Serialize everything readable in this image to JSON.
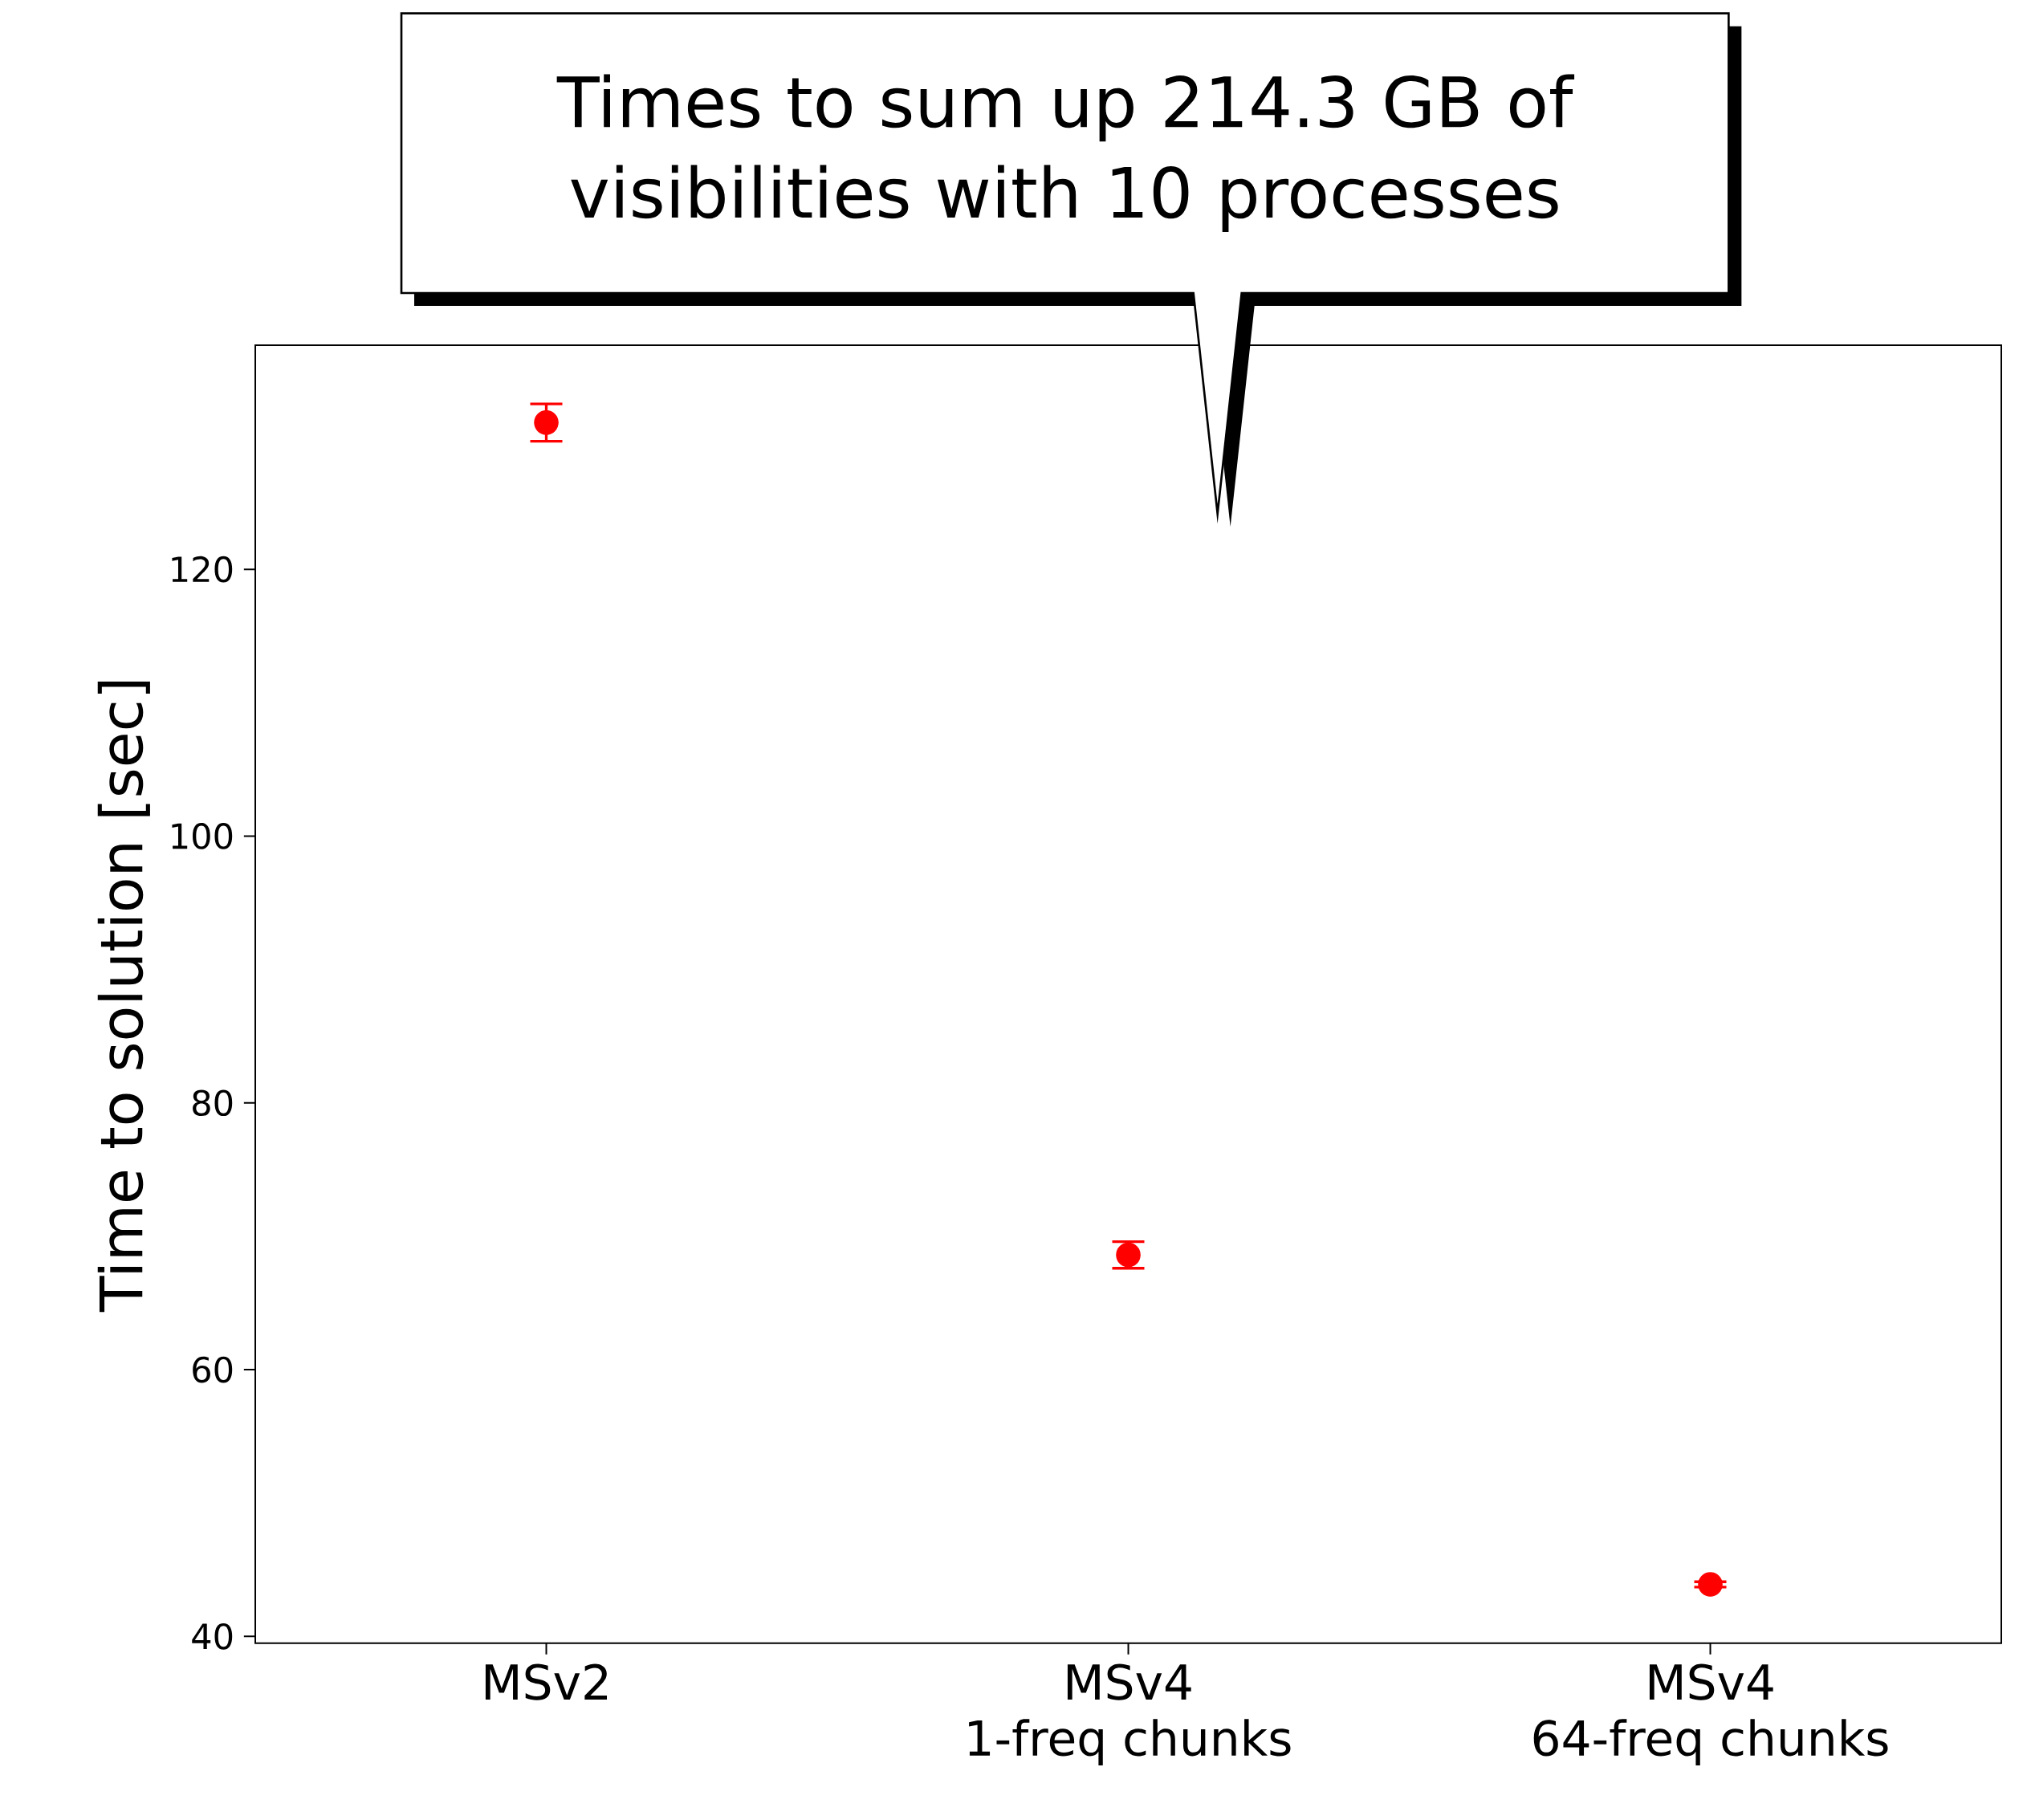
{
  "chart_data": {
    "type": "scatter",
    "ylabel": "Time to solution [sec]",
    "categories": [
      "MSv2",
      "MSv4\n1-freq chunks",
      "MSv4\n64-freq chunks"
    ],
    "values": [
      131.0,
      68.6,
      43.9
    ],
    "errors": [
      1.4,
      1.0,
      0.2
    ],
    "color": "#ff0000",
    "marker": "circle",
    "ylim": [
      39.5,
      136.8
    ],
    "yticks": [
      40,
      60,
      80,
      100,
      120
    ],
    "grid": false,
    "annotations": [
      "Times to sum up 214.3 GB of visibilities with 10 processes"
    ]
  }
}
